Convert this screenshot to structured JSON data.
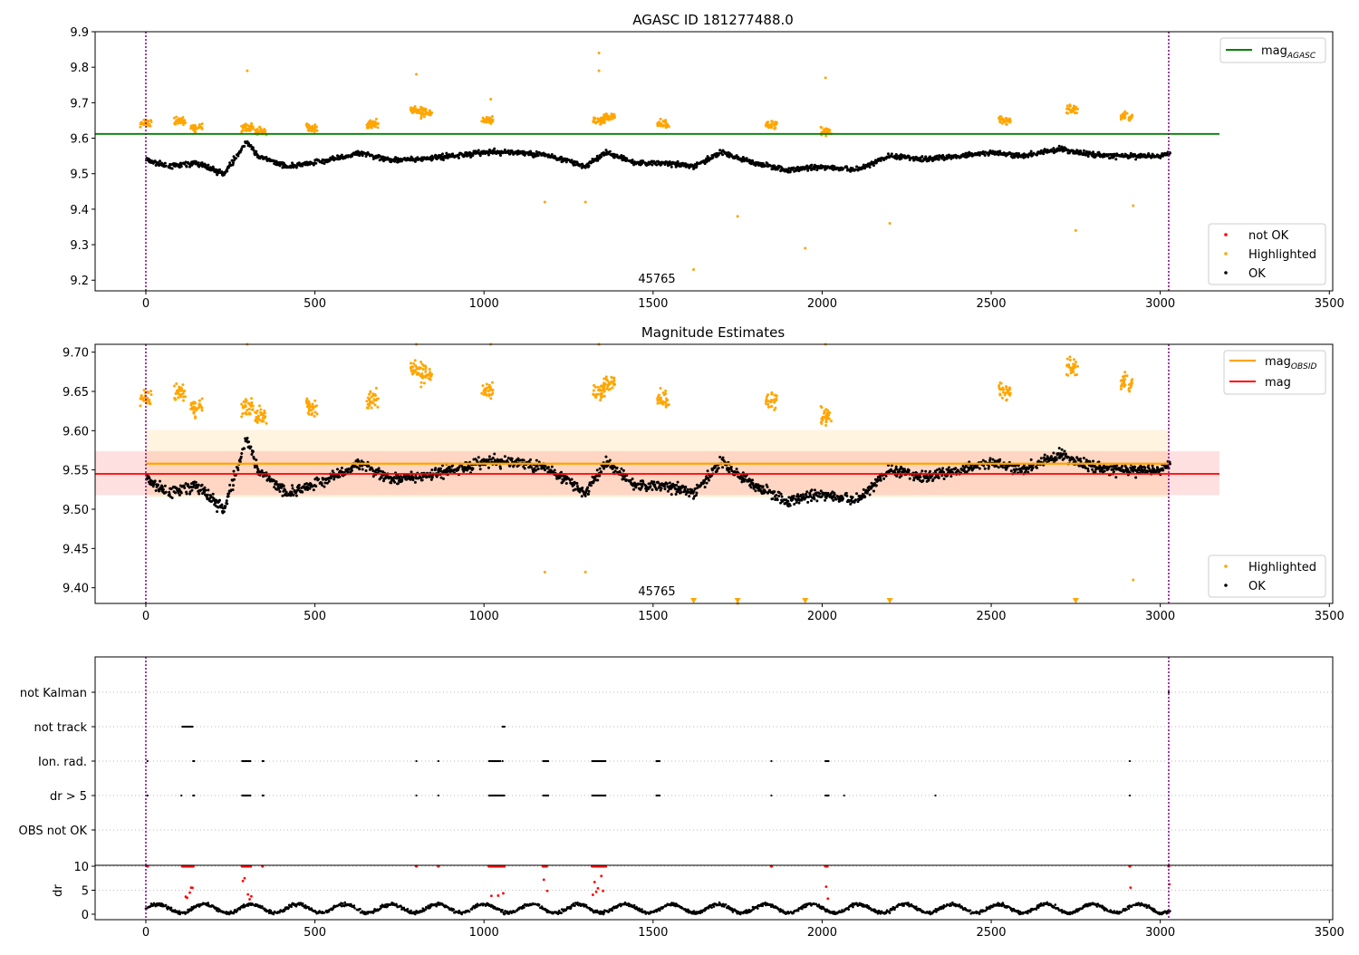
{
  "figure": {
    "top_title": "AGASC ID 181277488.0",
    "mid_title": "Magnitude Estimates",
    "obsid_label": "45765",
    "colors": {
      "ok": "#000000",
      "highlighted": "#ffa500",
      "not_ok": "#ff0000",
      "agasc": "#008000",
      "obsid_line": "#ffa500",
      "mag_line": "#ff0000",
      "vline": "#800080"
    }
  },
  "chart_data": [
    {
      "type": "scatter",
      "title": "AGASC ID 181277488.0",
      "xlim": [
        -150,
        3510
      ],
      "ylim": [
        9.17,
        9.9
      ],
      "x_ticks": [
        0,
        500,
        1000,
        1500,
        2000,
        2500,
        3000,
        3500
      ],
      "y_ticks": [
        "9.2",
        "9.3",
        "9.4",
        "9.5",
        "9.6",
        "9.7",
        "9.8",
        "9.9"
      ],
      "obsid_boundaries": [
        0,
        3025
      ],
      "mag_agasc": 9.612,
      "legend_line": {
        "label": "mag",
        "subscript": "AGASC",
        "placement": "top-right"
      },
      "legend_points": {
        "placement": "lower-right",
        "items": [
          "not OK",
          "Highlighted",
          "OK"
        ]
      },
      "series": [
        {
          "name": "OK",
          "baseline": [
            [
              0,
              9.54
            ],
            [
              60,
              9.52
            ],
            [
              150,
              9.53
            ],
            [
              230,
              9.5
            ],
            [
              300,
              9.59
            ],
            [
              330,
              9.55
            ],
            [
              420,
              9.52
            ],
            [
              500,
              9.53
            ],
            [
              640,
              9.56
            ],
            [
              700,
              9.54
            ],
            [
              800,
              9.54
            ],
            [
              900,
              9.55
            ],
            [
              1000,
              9.56
            ],
            [
              1100,
              9.56
            ],
            [
              1200,
              9.55
            ],
            [
              1300,
              9.52
            ],
            [
              1360,
              9.56
            ],
            [
              1450,
              9.53
            ],
            [
              1530,
              9.53
            ],
            [
              1620,
              9.52
            ],
            [
              1700,
              9.56
            ],
            [
              1800,
              9.53
            ],
            [
              1900,
              9.51
            ],
            [
              2000,
              9.52
            ],
            [
              2100,
              9.51
            ],
            [
              2200,
              9.55
            ],
            [
              2300,
              9.54
            ],
            [
              2400,
              9.55
            ],
            [
              2500,
              9.56
            ],
            [
              2600,
              9.55
            ],
            [
              2700,
              9.57
            ],
            [
              2750,
              9.56
            ],
            [
              2850,
              9.55
            ],
            [
              3000,
              9.55
            ],
            [
              3030,
              9.56
            ]
          ]
        },
        {
          "name": "Highlighted",
          "clusters": [
            [
              0,
              9.64
            ],
            [
              100,
              9.65
            ],
            [
              150,
              9.63
            ],
            [
              300,
              9.63
            ],
            [
              340,
              9.62
            ],
            [
              490,
              9.63
            ],
            [
              670,
              9.64
            ],
            [
              800,
              9.68
            ],
            [
              830,
              9.67
            ],
            [
              1010,
              9.65
            ],
            [
              1340,
              9.65
            ],
            [
              1370,
              9.66
            ],
            [
              1530,
              9.64
            ],
            [
              1850,
              9.64
            ],
            [
              2010,
              9.62
            ],
            [
              2540,
              9.65
            ],
            [
              2740,
              9.68
            ],
            [
              2900,
              9.66
            ]
          ],
          "outliers": [
            [
              300,
              9.79
            ],
            [
              800,
              9.78
            ],
            [
              1020,
              9.71
            ],
            [
              1340,
              9.84
            ],
            [
              1340,
              9.79
            ],
            [
              1180,
              9.42
            ],
            [
              1300,
              9.42
            ],
            [
              1620,
              9.23
            ],
            [
              1750,
              9.38
            ],
            [
              1950,
              9.29
            ],
            [
              2010,
              9.77
            ],
            [
              2200,
              9.36
            ],
            [
              2750,
              9.34
            ],
            [
              2920,
              9.41
            ]
          ]
        }
      ]
    },
    {
      "type": "scatter",
      "title": "Magnitude Estimates",
      "xlim": [
        -150,
        3510
      ],
      "ylim": [
        9.38,
        9.71
      ],
      "x_ticks": [
        0,
        500,
        1000,
        1500,
        2000,
        2500,
        3000,
        3500
      ],
      "y_ticks": [
        "9.40",
        "9.45",
        "9.50",
        "9.55",
        "9.60",
        "9.65",
        "9.70"
      ],
      "mag_obsid": 9.558,
      "mag_obsid_band": [
        9.515,
        9.601
      ],
      "mag": 9.545,
      "mag_band": [
        9.518,
        9.574
      ],
      "legend_line": {
        "items": [
          {
            "label": "mag",
            "subscript": "OBSID"
          },
          {
            "label": "mag",
            "subscript": ""
          }
        ],
        "placement": "top-right"
      },
      "legend_points": {
        "placement": "lower-right",
        "items": [
          "Highlighted",
          "OK"
        ]
      },
      "off_scale_markers_x": [
        1620,
        1750,
        1950,
        2200,
        2750
      ]
    },
    {
      "type": "scatter",
      "title": "",
      "flags": [
        "not Kalman",
        "not track",
        "Ion. rad.",
        "dr > 5",
        "OBS not OK"
      ],
      "flag_segments": {
        "not Kalman": [
          [
            3025,
            3027
          ]
        ],
        "not track": [
          [
            108,
            140
          ],
          [
            1055,
            1062
          ]
        ],
        "Ion. rad.": [
          [
            5,
            7
          ],
          [
            140,
            144
          ],
          [
            285,
            310
          ],
          [
            345,
            348
          ],
          [
            800,
            802
          ],
          [
            865,
            867
          ],
          [
            1015,
            1050
          ],
          [
            1055,
            1057
          ],
          [
            1175,
            1190
          ],
          [
            1320,
            1360
          ],
          [
            1510,
            1520
          ],
          [
            1850,
            1852
          ],
          [
            2010,
            2020
          ],
          [
            2910,
            2912
          ]
        ],
        "dr > 5": [
          [
            5,
            7
          ],
          [
            105,
            107
          ],
          [
            140,
            144
          ],
          [
            285,
            310
          ],
          [
            345,
            348
          ],
          [
            800,
            802
          ],
          [
            865,
            867
          ],
          [
            1015,
            1060
          ],
          [
            1175,
            1190
          ],
          [
            1320,
            1360
          ],
          [
            1510,
            1520
          ],
          [
            1850,
            1852
          ],
          [
            2010,
            2020
          ],
          [
            2065,
            2067
          ],
          [
            2335,
            2337
          ],
          [
            2910,
            2912
          ]
        ],
        "OBS not OK": []
      }
    },
    {
      "type": "scatter",
      "title": "",
      "ylabel": "dr",
      "y_ticks": [
        "0",
        "5",
        "10"
      ],
      "x_ticks": [
        0,
        500,
        1000,
        1500,
        2000,
        2500,
        3000,
        3500
      ],
      "clipped_value": 10,
      "high_dr_x": [
        5,
        108,
        112,
        116,
        120,
        124,
        128,
        132,
        136,
        140,
        285,
        290,
        295,
        300,
        305,
        310,
        345,
        800,
        865,
        1015,
        1020,
        1025,
        1030,
        1035,
        1040,
        1045,
        1050,
        1055,
        1060,
        1175,
        1180,
        1185,
        1320,
        1325,
        1330,
        1335,
        1340,
        1345,
        1350,
        1355,
        1360,
        1850,
        2010,
        2015,
        2910,
        3025
      ]
    }
  ]
}
